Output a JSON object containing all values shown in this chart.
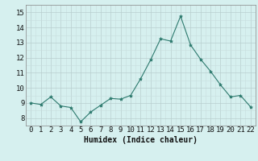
{
  "x": [
    0,
    1,
    2,
    3,
    4,
    5,
    6,
    7,
    8,
    9,
    10,
    11,
    12,
    13,
    14,
    15,
    16,
    17,
    18,
    19,
    20,
    21,
    22
  ],
  "y": [
    9.0,
    8.9,
    9.4,
    8.8,
    8.7,
    7.75,
    8.4,
    8.85,
    9.3,
    9.25,
    9.5,
    10.6,
    11.85,
    13.25,
    13.1,
    14.75,
    12.85,
    11.9,
    11.1,
    10.2,
    9.4,
    9.5,
    8.75
  ],
  "line_color": "#2d7a6e",
  "marker": "*",
  "marker_size": 3,
  "bg_color": "#d6f0ef",
  "grid_color_major": "#b8cece",
  "grid_color_minor": "#c8dede",
  "xlabel": "Humidex (Indice chaleur)",
  "ylim": [
    7.5,
    15.5
  ],
  "yticks": [
    8,
    9,
    10,
    11,
    12,
    13,
    14,
    15
  ],
  "xticks": [
    0,
    1,
    2,
    3,
    4,
    5,
    6,
    7,
    8,
    9,
    10,
    11,
    12,
    13,
    14,
    15,
    16,
    17,
    18,
    19,
    20,
    21,
    22
  ],
  "xlabel_fontsize": 7,
  "tick_fontsize": 6.5
}
